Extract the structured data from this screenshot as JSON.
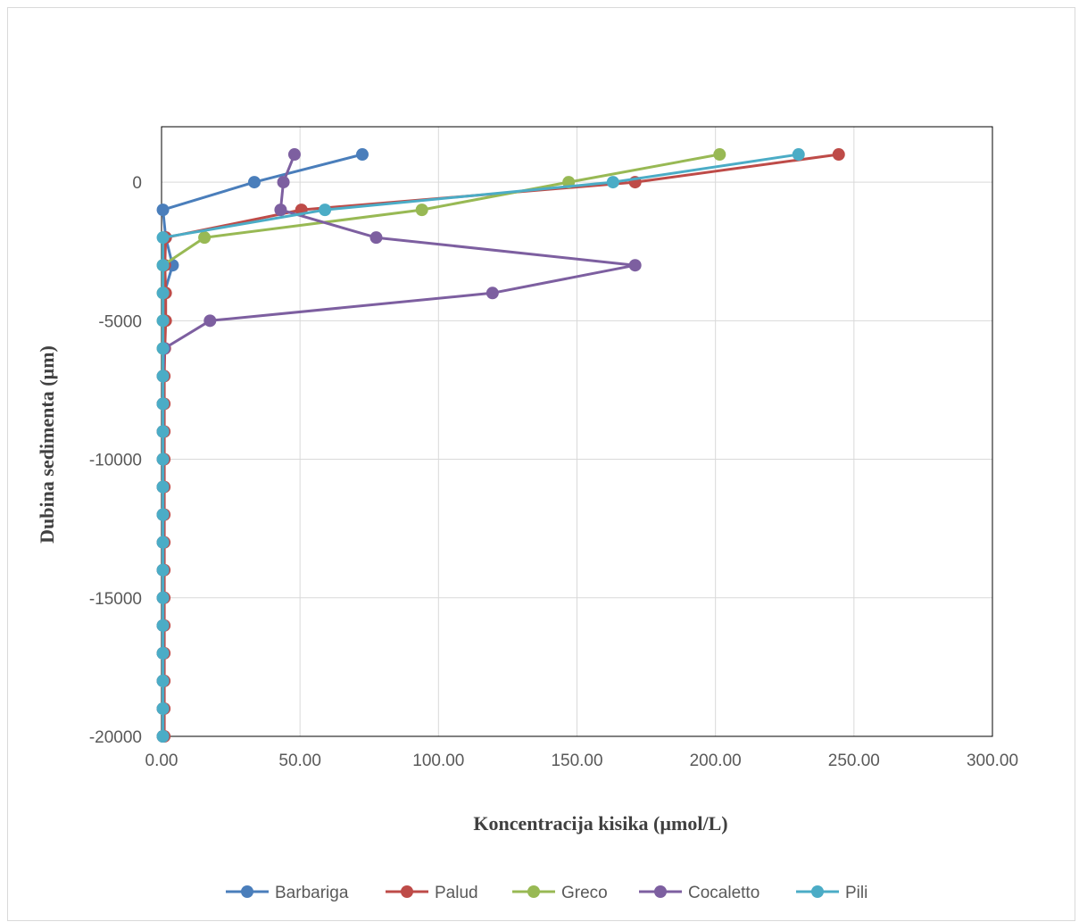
{
  "chart_data": {
    "type": "line",
    "title": "",
    "xlabel": "Koncentracija kisika (µmol/L)",
    "ylabel": "Dubina sedimenta (µm)",
    "xlim": [
      0,
      300
    ],
    "ylim": [
      -20000,
      2000
    ],
    "x_ticks": [
      "0.00",
      "50.00",
      "100.00",
      "150.00",
      "200.00",
      "250.00",
      "300.00"
    ],
    "y_ticks": [
      "0",
      "-5000",
      "-10000",
      "-15000",
      "-20000"
    ],
    "grid": true,
    "legend_position": "bottom",
    "depths": [
      1000,
      0,
      -1000,
      -2000,
      -3000,
      -4000,
      -5000,
      -6000,
      -7000,
      -8000,
      -9000,
      -10000,
      -11000,
      -12000,
      -13000,
      -14000,
      -15000,
      -16000,
      -17000,
      -18000,
      -19000,
      -20000
    ],
    "series": [
      {
        "name": "Barbariga",
        "color": "#4a7ebb",
        "x": [
          72.5,
          33.5,
          0.5,
          1.5,
          4.0,
          1.0,
          0.8,
          0.6,
          0.6,
          0.5,
          0.5,
          0.5,
          0.5,
          0.5,
          0.5,
          0.5,
          0.5,
          0.5,
          0.5,
          0.5,
          0.5,
          0.5
        ]
      },
      {
        "name": "Palud",
        "color": "#be4b48",
        "x": [
          244.5,
          171.0,
          50.5,
          1.5,
          1.2,
          1.5,
          1.5,
          1.2,
          1.0,
          1.0,
          1.0,
          1.0,
          1.0,
          1.0,
          1.0,
          1.0,
          1.0,
          1.0,
          1.0,
          1.0,
          1.0,
          1.0
        ]
      },
      {
        "name": "Greco",
        "color": "#98b954",
        "x": [
          201.5,
          147.0,
          94.0,
          15.5,
          0.5,
          0.5,
          0.5,
          0.5,
          0.5,
          0.5,
          0.5,
          0.5,
          0.5,
          0.5,
          0.5,
          0.5,
          0.5,
          0.5,
          0.5,
          0.5,
          0.5,
          0.5
        ]
      },
      {
        "name": "Cocaletto",
        "color": "#7d5fa0",
        "x": [
          48.0,
          44.0,
          43.0,
          77.5,
          171.0,
          119.5,
          17.5,
          1.0,
          0.5,
          0.5,
          0.5,
          0.5,
          0.5,
          0.5,
          0.5,
          0.5,
          0.5,
          0.5,
          0.5,
          0.5,
          0.5,
          0.5
        ]
      },
      {
        "name": "Pili",
        "color": "#4bacc6",
        "x": [
          230.0,
          163.0,
          59.0,
          0.5,
          0.5,
          0.5,
          0.5,
          0.5,
          0.5,
          0.5,
          0.5,
          0.5,
          0.5,
          0.5,
          0.5,
          0.5,
          0.5,
          0.5,
          0.5,
          0.5,
          0.5,
          0.5
        ]
      }
    ]
  }
}
